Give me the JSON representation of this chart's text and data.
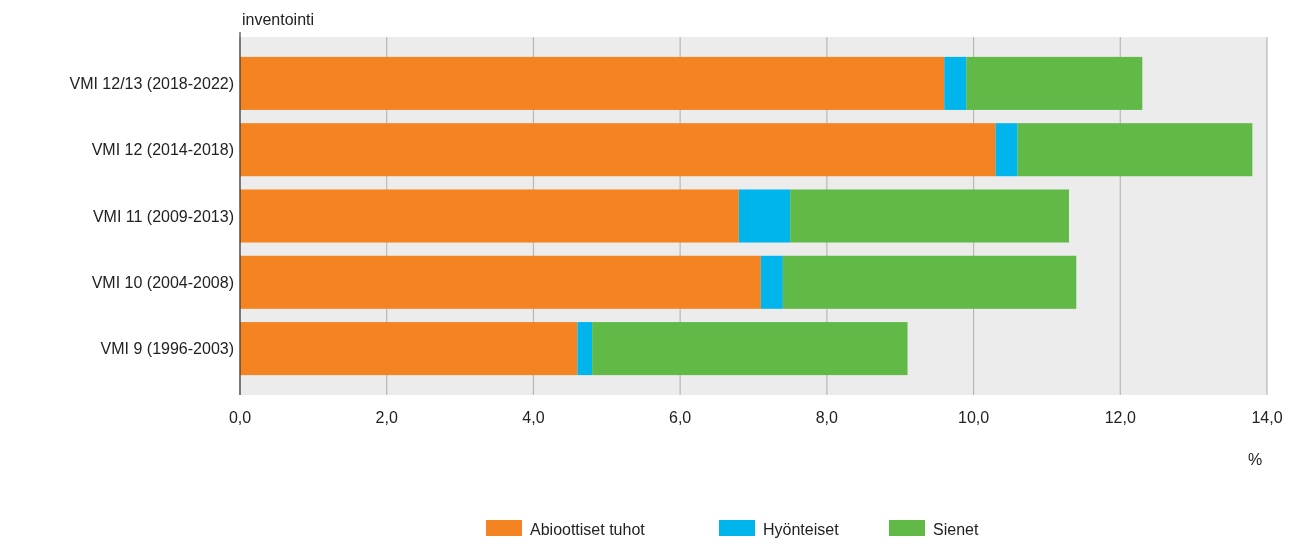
{
  "chart_data": {
    "type": "bar",
    "orientation": "horizontal",
    "stacked": true,
    "ylabel": "inventointi",
    "xlabel": "%",
    "categories": [
      "VMI 12/13 (2018-2022)",
      "VMI 12 (2014-2018)",
      "VMI 11 (2009-2013)",
      "VMI 10 (2004-2008)",
      "VMI 9 (1996-2003)"
    ],
    "series": [
      {
        "name": "Abioottiset tuhot",
        "color": "#f38421",
        "values": [
          9.6,
          10.3,
          6.8,
          7.1,
          4.6
        ]
      },
      {
        "name": "Hyönteiset",
        "color": "#00b4ec",
        "values": [
          0.3,
          0.3,
          0.7,
          0.3,
          0.2
        ]
      },
      {
        "name": "Sienet",
        "color": "#61b947",
        "values": [
          2.4,
          3.2,
          3.8,
          4.0,
          4.3
        ]
      }
    ],
    "xlim": [
      0,
      14
    ],
    "xticks": [
      {
        "value": 0,
        "label": "0,0"
      },
      {
        "value": 2,
        "label": "2,0"
      },
      {
        "value": 4,
        "label": "4,0"
      },
      {
        "value": 6,
        "label": "6,0"
      },
      {
        "value": 8,
        "label": "8,0"
      },
      {
        "value": 10,
        "label": "10,0"
      },
      {
        "value": 12,
        "label": "12,0"
      },
      {
        "value": 14,
        "label": "14,0"
      }
    ],
    "grid": "x",
    "legend": "bottom"
  }
}
